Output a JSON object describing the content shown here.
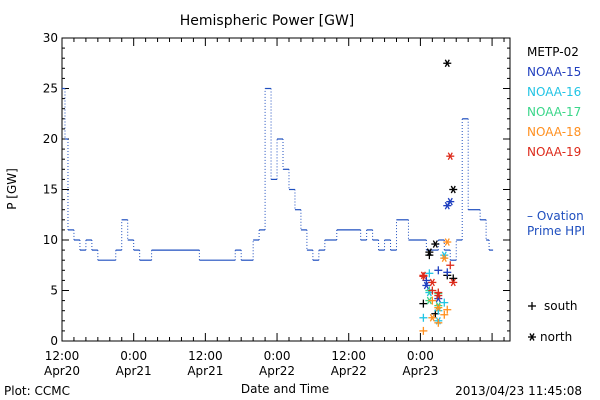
{
  "chart_data": {
    "type": "line",
    "title": "Hemispheric Power [GW]",
    "ylabel": "P [GW]",
    "xlabel": "Date and Time",
    "xlim": [
      "2013-04-20T12:00",
      "2013-04-23T15:00"
    ],
    "ylim": [
      0,
      30
    ],
    "y_ticks": [
      0,
      5,
      10,
      15,
      20,
      25,
      30
    ],
    "x_ticks": [
      {
        "time": "2013-04-20T12:00",
        "label1": "12:00",
        "label2": "Apr20"
      },
      {
        "time": "2013-04-21T00:00",
        "label1": "0:00",
        "label2": "Apr21"
      },
      {
        "time": "2013-04-21T12:00",
        "label1": "12:00",
        "label2": "Apr21"
      },
      {
        "time": "2013-04-22T00:00",
        "label1": "0:00",
        "label2": "Apr22"
      },
      {
        "time": "2013-04-22T12:00",
        "label1": "12:00",
        "label2": "Apr22"
      },
      {
        "time": "2013-04-23T00:00",
        "label1": "0:00",
        "label2": "Apr23"
      }
    ],
    "ovation": {
      "name": "Ovation Prime HPI",
      "label_lines": [
        "– Ovation",
        "Prime HPI"
      ],
      "color": "#1f4fbf",
      "points": [
        [
          "2013-04-20T12:00",
          25
        ],
        [
          "2013-04-20T12:30",
          20
        ],
        [
          "2013-04-20T13:00",
          11
        ],
        [
          "2013-04-20T14:00",
          10
        ],
        [
          "2013-04-20T15:00",
          9
        ],
        [
          "2013-04-20T16:00",
          10
        ],
        [
          "2013-04-20T17:00",
          9
        ],
        [
          "2013-04-20T18:00",
          8
        ],
        [
          "2013-04-20T21:00",
          9
        ],
        [
          "2013-04-20T22:00",
          12
        ],
        [
          "2013-04-20T23:00",
          10
        ],
        [
          "2013-04-21T00:00",
          9
        ],
        [
          "2013-04-21T01:00",
          8
        ],
        [
          "2013-04-21T03:00",
          9
        ],
        [
          "2013-04-21T11:00",
          8
        ],
        [
          "2013-04-21T17:00",
          9
        ],
        [
          "2013-04-21T18:00",
          8
        ],
        [
          "2013-04-21T20:00",
          10
        ],
        [
          "2013-04-21T21:00",
          11
        ],
        [
          "2013-04-21T22:00",
          25
        ],
        [
          "2013-04-21T23:00",
          16
        ],
        [
          "2013-04-22T00:00",
          20
        ],
        [
          "2013-04-22T01:00",
          17
        ],
        [
          "2013-04-22T02:00",
          15
        ],
        [
          "2013-04-22T03:00",
          13
        ],
        [
          "2013-04-22T04:00",
          11
        ],
        [
          "2013-04-22T05:00",
          9
        ],
        [
          "2013-04-22T06:00",
          8
        ],
        [
          "2013-04-22T07:00",
          9
        ],
        [
          "2013-04-22T08:00",
          10
        ],
        [
          "2013-04-22T10:00",
          11
        ],
        [
          "2013-04-22T14:00",
          10
        ],
        [
          "2013-04-22T15:00",
          11
        ],
        [
          "2013-04-22T16:00",
          10
        ],
        [
          "2013-04-22T17:00",
          9
        ],
        [
          "2013-04-22T18:00",
          10
        ],
        [
          "2013-04-22T19:00",
          9
        ],
        [
          "2013-04-22T20:00",
          12
        ],
        [
          "2013-04-22T22:00",
          10
        ],
        [
          "2013-04-23T01:00",
          9
        ],
        [
          "2013-04-23T03:00",
          10
        ],
        [
          "2013-04-23T04:00",
          9
        ],
        [
          "2013-04-23T05:00",
          8
        ],
        [
          "2013-04-23T06:00",
          10
        ],
        [
          "2013-04-23T07:00",
          22
        ],
        [
          "2013-04-23T08:00",
          13
        ],
        [
          "2013-04-23T10:00",
          12
        ],
        [
          "2013-04-23T11:00",
          10
        ],
        [
          "2013-04-23T11:30",
          9
        ]
      ]
    },
    "series": [
      {
        "name": "METP-02",
        "color": "#000000",
        "points": [
          {
            "t": "2013-04-23T00:30",
            "south": 3.7,
            "north": null
          },
          {
            "t": "2013-04-23T01:30",
            "south": 8.5,
            "north": 8.8
          },
          {
            "t": "2013-04-23T02:30",
            "south": 2.7,
            "north": 9.6
          },
          {
            "t": "2013-04-23T04:30",
            "south": 6.5,
            "north": 27.5
          },
          {
            "t": "2013-04-23T05:30",
            "south": 6.2,
            "north": 15.0
          }
        ]
      },
      {
        "name": "NOAA-15",
        "color": "#1f3fbf",
        "points": [
          {
            "t": "2013-04-23T01:00",
            "south": 6.0,
            "north": 5.5
          },
          {
            "t": "2013-04-23T03:00",
            "south": 7.0,
            "north": 4.2
          },
          {
            "t": "2013-04-23T04:30",
            "south": 6.8,
            "north": 13.4
          },
          {
            "t": "2013-04-23T05:00",
            "south": null,
            "north": 13.8
          }
        ]
      },
      {
        "name": "NOAA-16",
        "color": "#22c4e4",
        "points": [
          {
            "t": "2013-04-23T00:30",
            "south": 2.3,
            "north": null
          },
          {
            "t": "2013-04-23T01:30",
            "south": 6.7,
            "north": 4.8
          },
          {
            "t": "2013-04-23T03:00",
            "south": 3.0,
            "north": 2.0
          },
          {
            "t": "2013-04-23T04:00",
            "south": 3.8,
            "north": 8.5
          }
        ]
      },
      {
        "name": "NOAA-17",
        "color": "#3ad68a",
        "points": [
          {
            "t": "2013-04-23T01:30",
            "south": 5.0,
            "north": 4.0
          },
          {
            "t": "2013-04-23T03:00",
            "south": 4.7,
            "north": 3.5
          }
        ]
      },
      {
        "name": "NOAA-18",
        "color": "#ff9020",
        "points": [
          {
            "t": "2013-04-23T00:30",
            "south": 1.0,
            "north": null
          },
          {
            "t": "2013-04-23T02:00",
            "south": 4.0,
            "north": 2.3
          },
          {
            "t": "2013-04-23T03:00",
            "south": 1.8,
            "north": 3.3
          },
          {
            "t": "2013-04-23T04:00",
            "south": 2.6,
            "north": 8.2
          },
          {
            "t": "2013-04-23T04:30",
            "south": 3.1,
            "north": 9.8
          }
        ]
      },
      {
        "name": "NOAA-19",
        "color": "#dd2a1a",
        "points": [
          {
            "t": "2013-04-23T00:30",
            "south": 6.4,
            "north": 6.5
          },
          {
            "t": "2013-04-23T02:00",
            "south": 5.0,
            "north": 5.8
          },
          {
            "t": "2013-04-23T03:00",
            "south": 4.8,
            "north": 4.5
          },
          {
            "t": "2013-04-23T05:00",
            "south": 7.5,
            "north": 18.3
          },
          {
            "t": "2013-04-23T05:30",
            "south": null,
            "north": 5.8
          }
        ]
      }
    ],
    "marker_legend": {
      "south": "south",
      "north": "north"
    }
  },
  "footer": {
    "left": "Plot: CCMC",
    "right": "2013/04/23 11:45:08"
  }
}
